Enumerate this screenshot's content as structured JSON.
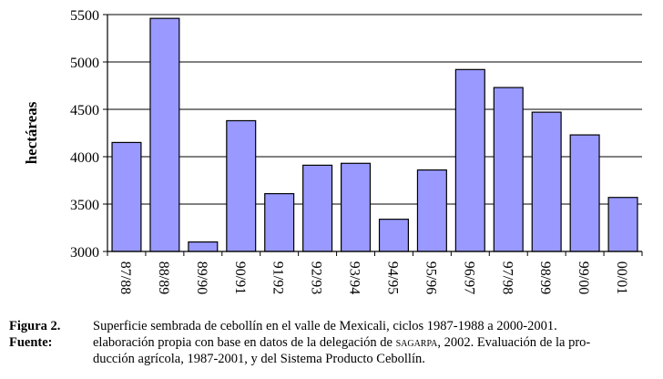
{
  "chart_data": {
    "type": "bar",
    "title": "",
    "xlabel": "",
    "ylabel": "hectáreas",
    "ylim": [
      3000,
      5500
    ],
    "yticks": [
      "3000",
      "3500",
      "4000",
      "4500",
      "5000",
      "5500"
    ],
    "grid": true,
    "legend": "none",
    "bar_color": "#9999ff",
    "categories": [
      "87/88",
      "88/89",
      "89/90",
      "90/91",
      "91/92",
      "92/93",
      "93/94",
      "94/95",
      "95/96",
      "96/97",
      "97/98",
      "98/99",
      "99/00",
      "00/01"
    ],
    "values": [
      4150,
      5460,
      3100,
      4380,
      3610,
      3910,
      3930,
      3340,
      3860,
      4920,
      4730,
      4470,
      4230,
      3570
    ]
  },
  "caption": {
    "figure_label": "Figura 2.",
    "figure_text": "Superficie sembrada de cebollín en el valle de Mexicali, ciclos 1987-1988 a 2000-2001.",
    "source_label": "Fuente:",
    "source_text_before": "elaboración propia con base en datos de la delegación de ",
    "source_agency": "sagarpa",
    "source_text_line1_after": ", 2002. Evaluación de la pro-",
    "source_text_line2": "ducción agrícola, 1987-2001, y del Sistema Producto Cebollín."
  }
}
